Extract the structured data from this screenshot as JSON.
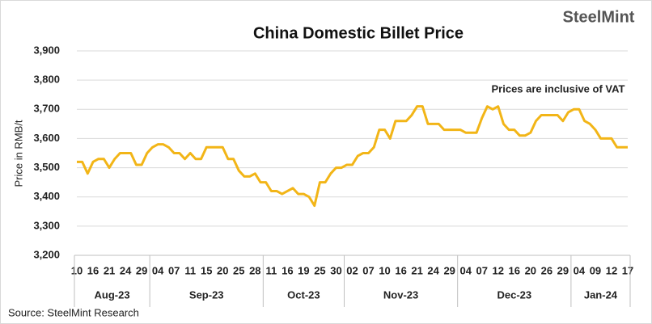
{
  "chart_data": {
    "type": "line",
    "title": "China Domestic Billet Price",
    "logo": "SteelMint",
    "annotation": "Prices are inclusive of VAT",
    "source": "Source:  SteelMint Research",
    "ylabel": "Price in RMB/t",
    "categories": [
      "10",
      null,
      null,
      "16",
      null,
      null,
      "21",
      null,
      null,
      "24",
      null,
      null,
      "29",
      null,
      null,
      "04",
      null,
      null,
      "07",
      null,
      null,
      "11",
      null,
      null,
      "15",
      null,
      null,
      "20",
      null,
      null,
      "25",
      null,
      null,
      "28",
      null,
      null,
      "11",
      null,
      null,
      "16",
      null,
      null,
      "19",
      null,
      null,
      "25",
      null,
      null,
      "30",
      null,
      null,
      "02",
      null,
      null,
      "07",
      null,
      null,
      "10",
      null,
      null,
      "16",
      null,
      null,
      "21",
      null,
      null,
      "24",
      null,
      null,
      "29",
      null,
      null,
      "04",
      null,
      null,
      "07",
      null,
      null,
      "12",
      null,
      null,
      "16",
      null,
      null,
      "20",
      null,
      null,
      "26",
      null,
      null,
      "29",
      null,
      null,
      "04",
      null,
      null,
      "09",
      null,
      null,
      "12",
      null,
      null,
      "17"
    ],
    "months": [
      "Aug-23",
      "Sep-23",
      "Oct-23",
      "Nov-23",
      "Dec-23",
      "Jan-24"
    ],
    "values": [
      3520,
      3520,
      3480,
      3520,
      3530,
      3530,
      3500,
      3530,
      3550,
      3550,
      3550,
      3510,
      3510,
      3550,
      3570,
      3580,
      3580,
      3570,
      3550,
      3550,
      3530,
      3550,
      3530,
      3530,
      3570,
      3570,
      3570,
      3570,
      3530,
      3530,
      3490,
      3470,
      3470,
      3480,
      3450,
      3450,
      3420,
      3420,
      3410,
      3420,
      3430,
      3410,
      3410,
      3400,
      3370,
      3450,
      3450,
      3480,
      3500,
      3500,
      3510,
      3510,
      3540,
      3550,
      3550,
      3570,
      3630,
      3630,
      3600,
      3660,
      3660,
      3660,
      3680,
      3710,
      3710,
      3650,
      3650,
      3650,
      3630,
      3630,
      3630,
      3630,
      3620,
      3620,
      3620,
      3670,
      3710,
      3700,
      3710,
      3650,
      3630,
      3630,
      3610,
      3610,
      3620,
      3660,
      3680,
      3680,
      3680,
      3680,
      3660,
      3690,
      3700,
      3700,
      3660,
      3650,
      3630,
      3600,
      3600,
      3600,
      3570,
      3570,
      3570
    ],
    "color": "#f2b517",
    "ylim": [
      3200,
      3900
    ],
    "yticks": [
      {
        "value": 3200,
        "label": "3,200"
      },
      {
        "value": 3300,
        "label": "3,300"
      },
      {
        "value": 3400,
        "label": "3,400"
      },
      {
        "value": 3500,
        "label": "3,500"
      },
      {
        "value": 3600,
        "label": "3,600"
      },
      {
        "value": 3700,
        "label": "3,700"
      },
      {
        "value": 3800,
        "label": "3,800"
      },
      {
        "value": 3900,
        "label": "3,900"
      }
    ],
    "grid": true
  }
}
